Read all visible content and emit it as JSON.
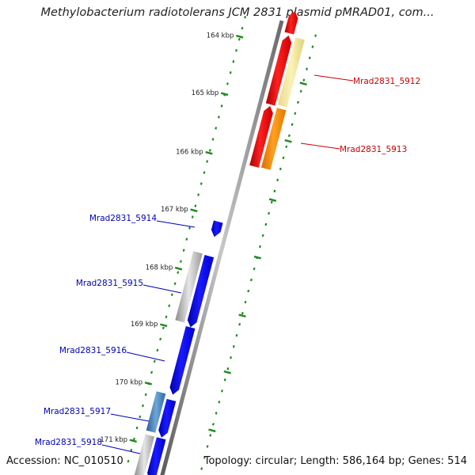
{
  "title": "Methylobacterium radiotolerans JCM 2831 plasmid pMRAD01, com...",
  "footer": {
    "accession_label": "Accession:",
    "accession": "NC_010510",
    "topology": "Topology: circular; Length: 586,164 bp; Genes: 514"
  },
  "ticks": [
    {
      "label": "164 kbp"
    },
    {
      "label": "165 kbp"
    },
    {
      "label": "166 kbp"
    },
    {
      "label": "167 kbp"
    },
    {
      "label": "168 kbp"
    },
    {
      "label": "169 kbp"
    },
    {
      "label": "170 kbp"
    },
    {
      "label": "171 kbp"
    }
  ],
  "genes": [
    {
      "name": "Mrad2831_5912",
      "strand": "forward",
      "color": "#ff0000",
      "cog_color": "#f2e6a0"
    },
    {
      "name": "Mrad2831_5913",
      "strand": "forward",
      "color": "#ff0000",
      "cog_color": "#ff8c00"
    },
    {
      "name": "Mrad2831_5914",
      "strand": "reverse",
      "color": "#0000ff"
    },
    {
      "name": "Mrad2831_5915",
      "strand": "reverse",
      "color": "#0000ff",
      "cog_color": "#b0b0b0"
    },
    {
      "name": "Mrad2831_5916",
      "strand": "reverse",
      "color": "#0000ff"
    },
    {
      "name": "Mrad2831_5917",
      "strand": "reverse",
      "color": "#0000ff",
      "cog_color": "#3f7fbf"
    },
    {
      "name": "Mrad2831_5918",
      "strand": "reverse",
      "color": "#0000ff",
      "cog_color": "#c0c0c0"
    }
  ],
  "colors": {
    "forward_label": "#cc0000",
    "reverse_label": "#0000bb",
    "tick_mark": "#228b22",
    "backbone": "#808080"
  }
}
